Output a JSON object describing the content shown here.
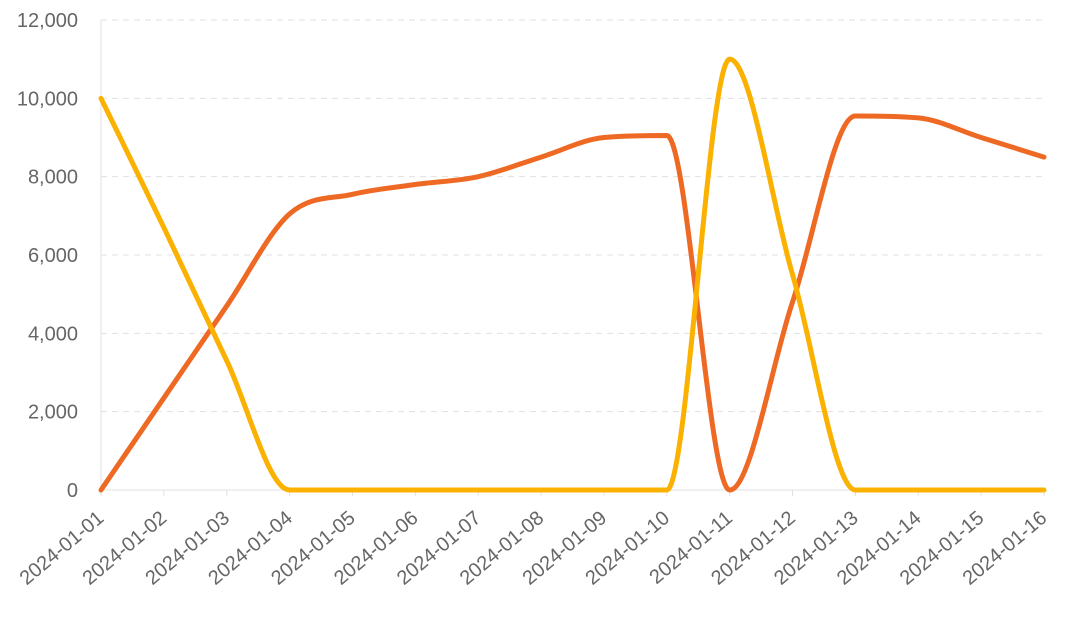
{
  "chart_data": {
    "type": "line",
    "title": "",
    "xlabel": "",
    "ylabel": "",
    "categories": [
      "2024-01-01",
      "2024-01-02",
      "2024-01-03",
      "2024-01-04",
      "2024-01-05",
      "2024-01-06",
      "2024-01-07",
      "2024-01-08",
      "2024-01-09",
      "2024-01-10",
      "2024-01-11",
      "2024-01-12",
      "2024-01-13",
      "2024-01-14",
      "2024-01-15",
      "2024-01-16"
    ],
    "ylim": [
      0,
      12000
    ],
    "yticks": [
      0,
      2000,
      4000,
      6000,
      8000,
      10000,
      12000
    ],
    "ytick_labels": [
      "0",
      "2,000",
      "4,000",
      "6,000",
      "8,000",
      "10,000",
      "12,000"
    ],
    "grid": true,
    "smooth": true,
    "series": [
      {
        "color": "#EE6A24",
        "values": [
          0,
          2350,
          4700,
          7050,
          7550,
          7800,
          8000,
          8500,
          9000,
          9050,
          0,
          4800,
          9550,
          9500,
          9000,
          8500
        ]
      },
      {
        "color": "#FBB100",
        "values": [
          10000,
          6700,
          3300,
          0,
          0,
          0,
          0,
          0,
          0,
          0,
          11000,
          5500,
          0,
          0,
          0,
          0
        ]
      }
    ]
  }
}
